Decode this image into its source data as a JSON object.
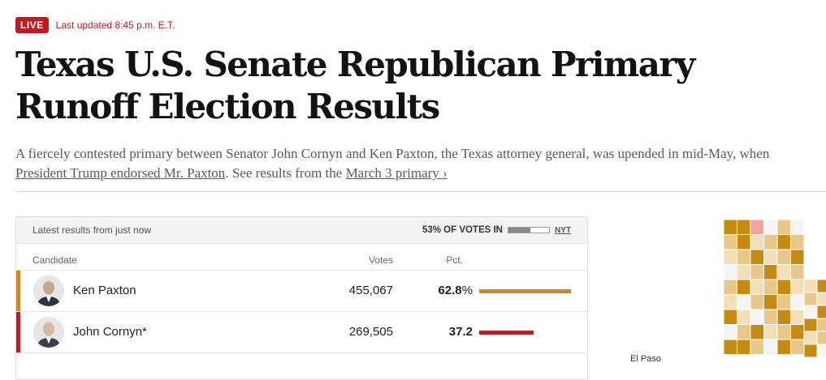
{
  "header": {
    "live_label": "LIVE",
    "updated_text": "Last updated 8:45 p.m. E.T.",
    "title": "Texas U.S. Senate Republican Primary Runoff Election Results",
    "summary_part1": "A fiercely contested primary between Senator John Cornyn and Ken Paxton, the Texas attorney general, was upended in mid-May, when ",
    "summary_link1": "President Trump endorsed Mr. Paxton",
    "summary_part2": ". See results from the ",
    "summary_link2": "March 3 primary ›"
  },
  "results": {
    "latest_text": "Latest results from just now",
    "reporting_text": "53% OF VOTES IN",
    "reporting_fraction": 0.53,
    "source_label": "NYT",
    "col_candidate": "Candidate",
    "col_votes": "Votes",
    "col_pct": "Pct.",
    "candidates": [
      {
        "name": "Ken Paxton",
        "votes": "455,067",
        "pct": "62.8",
        "pct_suffix": "%",
        "pct_value": 62.8,
        "color": "#c9892a"
      },
      {
        "name": "John Cornyn*",
        "votes": "269,505",
        "pct": "37.2",
        "pct_suffix": "",
        "pct_value": 37.2,
        "color": "#b0232a"
      }
    ]
  },
  "map": {
    "label": "El Paso",
    "colors": {
      "paxton_strong": "#c48a12",
      "paxton_light": "#e8c78a",
      "paxton_pale": "#f2dfb5",
      "cornyn": "#f2a0a0",
      "empty": "#f4f4f4"
    }
  }
}
